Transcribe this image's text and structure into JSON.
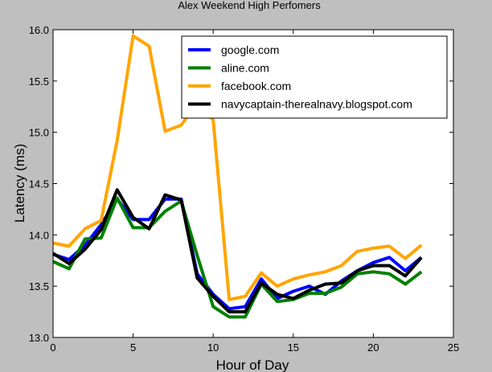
{
  "chart_data": {
    "type": "line",
    "title": "Alex Weekend High Perfomers",
    "xlabel": "Hour of Day",
    "ylabel": "Latency (ms)",
    "xlim": [
      0,
      25
    ],
    "ylim": [
      13.0,
      16.0
    ],
    "xticks": [
      "0",
      "5",
      "10",
      "15",
      "20",
      "25"
    ],
    "yticks": [
      "13.0",
      "13.5",
      "14.0",
      "14.5",
      "15.0",
      "15.5",
      "16.0"
    ],
    "grid": false,
    "legend_position": "top-right",
    "x": [
      0,
      1,
      2,
      3,
      4,
      5,
      6,
      7,
      8,
      9,
      10,
      11,
      12,
      13,
      14,
      15,
      16,
      17,
      18,
      19,
      20,
      21,
      22,
      23
    ],
    "series": [
      {
        "name": "google.com",
        "color": "#0000ff",
        "values": [
          13.81,
          13.76,
          13.9,
          14.1,
          14.35,
          14.15,
          14.15,
          14.35,
          14.35,
          13.62,
          13.42,
          13.28,
          13.3,
          13.57,
          13.38,
          13.45,
          13.5,
          13.42,
          13.55,
          13.65,
          13.73,
          13.78,
          13.65,
          13.78
        ]
      },
      {
        "name": "aline.com",
        "color": "#008000",
        "values": [
          13.74,
          13.67,
          13.96,
          13.97,
          14.36,
          14.07,
          14.07,
          14.23,
          14.33,
          13.8,
          13.3,
          13.2,
          13.2,
          13.52,
          13.35,
          13.37,
          13.43,
          13.43,
          13.49,
          13.62,
          13.64,
          13.62,
          13.52,
          13.64
        ]
      },
      {
        "name": "facebook.com",
        "color": "#ffa500",
        "values": [
          13.92,
          13.89,
          14.06,
          14.14,
          14.92,
          15.94,
          15.84,
          15.01,
          15.07,
          15.28,
          15.12,
          13.37,
          13.4,
          13.63,
          13.5,
          13.57,
          13.61,
          13.64,
          13.7,
          13.84,
          13.87,
          13.89,
          13.77,
          13.9
        ]
      },
      {
        "name": "navycaptain-therealnavy.blogspot.com",
        "color": "#000000",
        "values": [
          13.82,
          13.72,
          13.86,
          14.05,
          14.44,
          14.17,
          14.06,
          14.39,
          14.34,
          13.58,
          13.4,
          13.25,
          13.25,
          13.53,
          13.42,
          13.38,
          13.46,
          13.52,
          13.53,
          13.65,
          13.7,
          13.7,
          13.6,
          13.78
        ]
      }
    ]
  }
}
